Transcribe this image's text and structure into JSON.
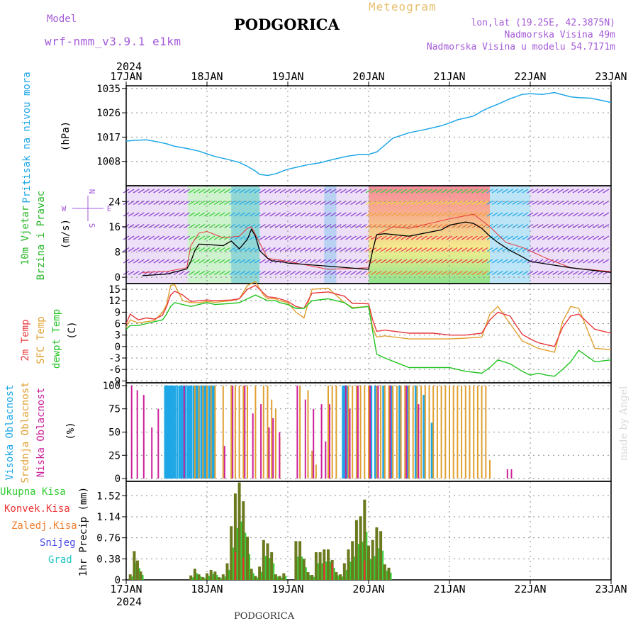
{
  "header": {
    "model_label": "Model",
    "model_name": "wrf-nmm_v3.9.1 e1km",
    "title": "PODGORICA",
    "meteogram": "Meteogram",
    "lonlat": "lon,lat (19.25E, 42.3875N)",
    "elev": "Nadmorska Visina 49m",
    "elev_model": "Nadmorska Visina u modelu 54.7171m",
    "footer_title": "PODGORICA",
    "credit": "made by Angel",
    "year": "2024"
  },
  "axis": {
    "dates": [
      "17JAN",
      "18JAN",
      "19JAN",
      "20JAN",
      "21JAN",
      "22JAN",
      "23JAN"
    ]
  },
  "colors": {
    "pressure": "#1fa7e6",
    "t2m": "#e8383b",
    "sfc": "#e0a030",
    "dew": "#22c422",
    "high_cloud": "#1fa7e6",
    "mid_cloud": "#e0a030",
    "low_cloud": "#cc1f9a",
    "precip_total": "#33cc33",
    "precip_conv": "#ee3333",
    "precip_frozen": "#f08030",
    "snow": "#4a4ae8",
    "grad": "#22c4c4",
    "model": "#a45ad8"
  },
  "chart_data": [
    {
      "type": "line",
      "panel": "pressure",
      "ylabel": "Pritisak na nivou mora",
      "unit": "(hPa)",
      "yticks": [
        1008,
        1017,
        1026,
        1035
      ],
      "ylim": [
        999,
        1036
      ],
      "xlim": [
        0,
        6
      ],
      "series": [
        {
          "x": [
            0,
            0.1,
            0.25,
            0.4,
            0.5,
            0.6,
            0.75,
            0.9,
            1.0,
            1.1,
            1.25,
            1.4,
            1.5,
            1.6,
            1.65,
            1.75,
            1.85,
            1.95,
            2.0,
            2.1,
            2.25,
            2.4,
            2.5,
            2.6,
            2.75,
            2.9,
            3.0,
            3.1,
            3.2,
            3.3,
            3.5,
            3.7,
            3.9,
            4.0,
            4.1,
            4.3,
            4.4,
            4.5,
            4.6,
            4.75,
            4.9,
            5.0,
            5.15,
            5.3,
            5.5,
            5.6,
            5.75,
            5.9,
            6.0
          ],
          "y": [
            1015.5,
            1015.8,
            1016,
            1015.2,
            1014.5,
            1013.6,
            1012.8,
            1011.8,
            1010.8,
            1009.8,
            1008.8,
            1007.6,
            1006.2,
            1004.4,
            1003.2,
            1002.8,
            1003.4,
            1004.6,
            1005.1,
            1005.8,
            1006.8,
            1007.5,
            1008.3,
            1009.0,
            1010.0,
            1010.6,
            1010.6,
            1011.5,
            1014.0,
            1016.6,
            1018.6,
            1019.8,
            1021.2,
            1022.2,
            1023.4,
            1024.8,
            1026.6,
            1028.0,
            1029.2,
            1031.2,
            1032.8,
            1033.1,
            1032.8,
            1033.5,
            1031.9,
            1031.6,
            1031.4,
            1030.5,
            1029.8
          ]
        }
      ]
    },
    {
      "type": "line",
      "panel": "wind",
      "ylabel": "10m Vjetar",
      "ylabel2": "Brzina i Pravac",
      "unit": "(m/s)",
      "compass": {
        "s": "S",
        "n": "N",
        "w": "W",
        "e": "E"
      },
      "yticks": [
        0,
        8,
        16,
        24
      ],
      "ylim": [
        -2,
        29
      ],
      "xlim": [
        0,
        6
      ],
      "series": [
        {
          "name": "speed",
          "x": [
            0.2,
            0.5,
            0.75,
            0.8,
            0.85,
            0.9,
            1.0,
            1.2,
            1.3,
            1.4,
            1.5,
            1.55,
            1.6,
            1.65,
            1.75,
            1.8,
            1.9,
            2.0,
            2.5,
            3.0,
            3.05,
            3.1,
            3.2,
            3.5,
            3.9,
            4.0,
            4.2,
            4.3,
            4.4,
            4.5,
            4.6,
            4.75,
            4.9,
            5.0,
            5.5,
            6.0
          ],
          "y": [
            0.5,
            1.0,
            2.6,
            5.0,
            8.5,
            10.5,
            10.4,
            10.0,
            11.5,
            9.0,
            12.0,
            15.2,
            13.0,
            8.5,
            6.0,
            5.2,
            5.0,
            4.5,
            3.5,
            2.5,
            8.5,
            13.5,
            13.8,
            13.0,
            15.0,
            16.5,
            17.5,
            17.0,
            15.5,
            13.0,
            11.0,
            8.5,
            6.5,
            5.0,
            3.0,
            1.5
          ]
        },
        {
          "name": "gust",
          "x": [
            0.2,
            0.5,
            0.75,
            0.8,
            0.9,
            1.0,
            1.2,
            1.4,
            1.5,
            1.55,
            1.65,
            1.75,
            2.0,
            2.5,
            3.0,
            3.1,
            3.3,
            3.5,
            4.0,
            4.3,
            4.5,
            4.7,
            4.9,
            5.2,
            5.5,
            6.0
          ],
          "y": [
            1.5,
            1.8,
            3.0,
            10.0,
            14.0,
            14.5,
            12.5,
            13.0,
            15.5,
            16.0,
            11.0,
            6.0,
            5.0,
            2.5,
            3.0,
            13.5,
            16.0,
            15.5,
            18.5,
            20.0,
            16.0,
            11.0,
            9.5,
            6.0,
            3.0,
            1.8
          ]
        }
      ]
    },
    {
      "type": "line",
      "panel": "temperature",
      "ylabel": "2m Temp",
      "ylabel2": "SFC Temp",
      "ylabel3": "dewpt Temp",
      "unit": "(C)",
      "yticks": [
        -9,
        -6,
        -3,
        0,
        3,
        6,
        9,
        12,
        15
      ],
      "ylim": [
        -9.5,
        16.5
      ],
      "xlim": [
        0,
        6
      ],
      "series": [
        {
          "name": "t2m",
          "x": [
            0,
            0.05,
            0.15,
            0.25,
            0.35,
            0.45,
            0.5,
            0.55,
            0.6,
            0.7,
            0.8,
            0.9,
            1.0,
            1.1,
            1.3,
            1.4,
            1.5,
            1.6,
            1.7,
            1.75,
            1.85,
            1.9,
            2.0,
            2.1,
            2.2,
            2.3,
            2.5,
            2.7,
            2.8,
            3.0,
            3.05,
            3.1,
            3.2,
            3.5,
            3.8,
            4.0,
            4.2,
            4.4,
            4.5,
            4.6,
            4.75,
            4.9,
            5.0,
            5.1,
            5.2,
            5.3,
            5.4,
            5.5,
            5.6,
            5.8,
            6.0
          ],
          "y": [
            6.0,
            8.5,
            7.0,
            7.5,
            7.2,
            8.2,
            10.5,
            13.5,
            14.5,
            13.5,
            11.8,
            12.0,
            12.2,
            12.0,
            12.2,
            12.5,
            15.0,
            16.0,
            14.0,
            13.0,
            12.8,
            12.5,
            11.8,
            10.5,
            10.0,
            14.0,
            14.3,
            13.2,
            11.3,
            11.2,
            7.0,
            4.0,
            4.3,
            3.5,
            3.5,
            3.0,
            3.0,
            3.5,
            7.0,
            9.0,
            8.0,
            3.2,
            2.0,
            1.0,
            0.5,
            0.0,
            5.0,
            8.0,
            8.5,
            4.5,
            3.5
          ]
        },
        {
          "name": "sfc",
          "x": [
            0,
            0.05,
            0.15,
            0.25,
            0.35,
            0.45,
            0.5,
            0.55,
            0.6,
            0.7,
            0.8,
            0.9,
            1.0,
            1.1,
            1.3,
            1.4,
            1.5,
            1.6,
            1.7,
            1.75,
            1.85,
            1.9,
            2.0,
            2.1,
            2.2,
            2.3,
            2.5,
            2.7,
            2.8,
            3.0,
            3.05,
            3.1,
            3.2,
            3.5,
            3.8,
            4.0,
            4.2,
            4.4,
            4.5,
            4.6,
            4.75,
            4.9,
            5.0,
            5.1,
            5.2,
            5.3,
            5.4,
            5.5,
            5.6,
            5.8,
            6.0
          ],
          "y": [
            5.0,
            7.0,
            6.2,
            6.5,
            6.8,
            9.0,
            11.0,
            16.0,
            16.2,
            12.0,
            11.5,
            11.5,
            11.8,
            11.6,
            12.0,
            12.5,
            16.0,
            17.0,
            13.5,
            12.5,
            12.5,
            12.0,
            11.5,
            9.0,
            7.5,
            15.0,
            15.3,
            11.5,
            10.2,
            10.5,
            5.0,
            2.5,
            2.8,
            2.0,
            2.0,
            2.0,
            2.2,
            2.5,
            8.5,
            10.5,
            6.0,
            1.5,
            0.5,
            -0.5,
            -1.0,
            -1.5,
            6.5,
            10.5,
            10.0,
            -0.5,
            -0.8
          ]
        },
        {
          "name": "dew",
          "x": [
            0,
            0.05,
            0.15,
            0.25,
            0.35,
            0.45,
            0.5,
            0.55,
            0.6,
            0.7,
            0.8,
            0.9,
            1.0,
            1.1,
            1.3,
            1.4,
            1.5,
            1.6,
            1.7,
            1.75,
            1.85,
            1.9,
            2.0,
            2.1,
            2.2,
            2.3,
            2.5,
            2.7,
            2.8,
            3.0,
            3.05,
            3.1,
            3.2,
            3.5,
            3.8,
            4.0,
            4.2,
            4.4,
            4.5,
            4.6,
            4.75,
            4.9,
            5.0,
            5.1,
            5.2,
            5.3,
            5.4,
            5.5,
            5.6,
            5.8,
            6.0
          ],
          "y": [
            4.5,
            5.5,
            5.5,
            6.0,
            6.5,
            7.0,
            8.5,
            10.5,
            11.5,
            11.0,
            10.5,
            11.0,
            11.5,
            11.0,
            11.3,
            11.5,
            12.5,
            13.5,
            12.5,
            12.0,
            12.0,
            11.5,
            11.0,
            10.0,
            10.0,
            12.0,
            12.5,
            11.5,
            10.0,
            10.5,
            4.0,
            -2.0,
            -3.0,
            -5.5,
            -5.5,
            -5.5,
            -6.5,
            -7.0,
            -5.5,
            -3.5,
            -4.5,
            -6.5,
            -7.5,
            -7.0,
            -7.5,
            -7.8,
            -6.0,
            -4.0,
            -1.0,
            -4.0,
            -3.5
          ]
        }
      ]
    },
    {
      "type": "bar",
      "panel": "cloud",
      "ylabel": "Visoka Oblacnost",
      "ylabel2": "Srednja Oblacnost",
      "ylabel3": "Niska Oblacnost",
      "unit": "(%)",
      "yticks": [
        0,
        25,
        50,
        75,
        100
      ],
      "ylim": [
        -3,
        103
      ],
      "xlim": [
        0,
        6
      ],
      "series": [
        {
          "name": "high",
          "x": [
            0.5,
            0.51,
            0.52,
            0.53,
            0.54,
            0.55,
            0.56,
            0.57,
            0.58,
            0.6,
            0.62,
            0.65,
            0.68,
            0.7,
            0.72,
            0.75,
            0.78,
            0.8,
            0.82,
            0.85,
            0.88,
            0.9,
            0.92,
            0.95,
            0.98,
            1.0,
            1.02,
            1.05,
            1.08,
            1.1,
            2.7,
            2.72,
            2.75,
            3.05,
            3.1,
            3.2,
            3.3,
            3.4,
            3.5,
            3.6,
            3.7,
            3.8
          ],
          "y": [
            100,
            100,
            100,
            100,
            100,
            100,
            100,
            100,
            100,
            100,
            100,
            100,
            100,
            100,
            100,
            100,
            100,
            100,
            100,
            100,
            100,
            100,
            100,
            100,
            100,
            100,
            100,
            100,
            100,
            100,
            100,
            100,
            100,
            100,
            100,
            100,
            100,
            100,
            100,
            100,
            90,
            60
          ]
        },
        {
          "name": "mid",
          "x": [
            0.85,
            0.9,
            0.95,
            1.0,
            1.05,
            1.1,
            1.2,
            1.3,
            1.35,
            1.4,
            1.45,
            1.5,
            1.6,
            1.7,
            1.75,
            1.8,
            1.85,
            1.9,
            2.15,
            2.25,
            2.3,
            2.35,
            2.5,
            2.55,
            2.6,
            2.75,
            2.8,
            2.85,
            2.9,
            2.95,
            3.0,
            3.1,
            3.15,
            3.2,
            3.25,
            3.3,
            3.35,
            3.4,
            3.45,
            3.5,
            3.55,
            3.6,
            3.65,
            3.7,
            3.75,
            3.8,
            3.85,
            3.9,
            3.95,
            4.0,
            4.05,
            4.1,
            4.15,
            4.2,
            4.25,
            4.3,
            4.35,
            4.4,
            4.45,
            4.5
          ],
          "y": [
            100,
            100,
            100,
            100,
            100,
            100,
            100,
            100,
            100,
            100,
            100,
            100,
            100,
            100,
            100,
            85,
            75,
            45,
            100,
            95,
            30,
            15,
            100,
            100,
            100,
            100,
            100,
            100,
            100,
            100,
            100,
            100,
            100,
            100,
            100,
            100,
            100,
            100,
            100,
            100,
            100,
            100,
            100,
            100,
            100,
            100,
            100,
            100,
            100,
            100,
            100,
            100,
            100,
            100,
            100,
            100,
            100,
            100,
            100,
            20
          ]
        },
        {
          "name": "low",
          "x": [
            0.05,
            0.12,
            0.2,
            0.3,
            0.38,
            0.7,
            1.2,
            1.3,
            1.45,
            1.55,
            1.65,
            1.75,
            1.8,
            1.88,
            2.1,
            2.2,
            2.3,
            2.4,
            2.45,
            2.5,
            2.7,
            2.75,
            2.85,
            3.0,
            3.1,
            3.25,
            3.45,
            3.6,
            4.7,
            4.75
          ],
          "y": [
            100,
            95,
            90,
            55,
            75,
            100,
            35,
            100,
            100,
            70,
            80,
            55,
            65,
            50,
            100,
            85,
            75,
            80,
            40,
            80,
            100,
            75,
            100,
            100,
            100,
            100,
            100,
            80,
            10,
            10
          ]
        }
      ]
    },
    {
      "type": "bar",
      "panel": "precip",
      "ylabel": "1hr Precip",
      "unit": "(mm)",
      "legend": [
        "Ukupna Kisa",
        "Konvek.Kisa",
        "Zaledj.Kisa",
        "Snijeg",
        "Grad"
      ],
      "yticks": [
        0,
        0.38,
        0.76,
        1.14,
        1.52
      ],
      "ylim": [
        0,
        1.78
      ],
      "xlim": [
        0,
        6
      ],
      "series": [
        {
          "name": "total",
          "x": [
            0.05,
            0.1,
            0.14,
            0.18,
            0.8,
            0.85,
            0.9,
            0.95,
            1.0,
            1.05,
            1.1,
            1.15,
            1.2,
            1.25,
            1.3,
            1.35,
            1.4,
            1.45,
            1.5,
            1.55,
            1.6,
            1.65,
            1.7,
            1.75,
            1.8,
            1.85,
            1.9,
            1.95,
            2.1,
            2.15,
            2.2,
            2.25,
            2.3,
            2.35,
            2.4,
            2.45,
            2.5,
            2.55,
            2.6,
            2.65,
            2.7,
            2.75,
            2.8,
            2.85,
            2.9,
            2.95,
            3.0,
            3.05,
            3.1,
            3.15,
            3.2,
            3.25
          ],
          "y": [
            0.1,
            0.52,
            0.35,
            0.15,
            0.08,
            0.2,
            0.1,
            0.05,
            0.12,
            0.18,
            0.15,
            0.05,
            0.1,
            0.3,
            0.97,
            1.56,
            1.76,
            1.42,
            0.78,
            0.2,
            0.07,
            0.24,
            0.72,
            0.66,
            0.5,
            0.1,
            0.07,
            0.12,
            0.7,
            0.7,
            0.38,
            0.14,
            0.09,
            0.5,
            0.5,
            0.55,
            0.55,
            0.36,
            0.14,
            0.1,
            0.3,
            0.55,
            0.7,
            1.08,
            1.15,
            1.45,
            0.62,
            0.72,
            0.95,
            0.88,
            0.28,
            0.22
          ]
        },
        {
          "name": "conv",
          "x": [
            1.35,
            1.45,
            2.45,
            2.55,
            2.95
          ],
          "y": [
            0.5,
            0.4,
            0.3,
            0.3,
            0.35
          ]
        }
      ]
    }
  ]
}
